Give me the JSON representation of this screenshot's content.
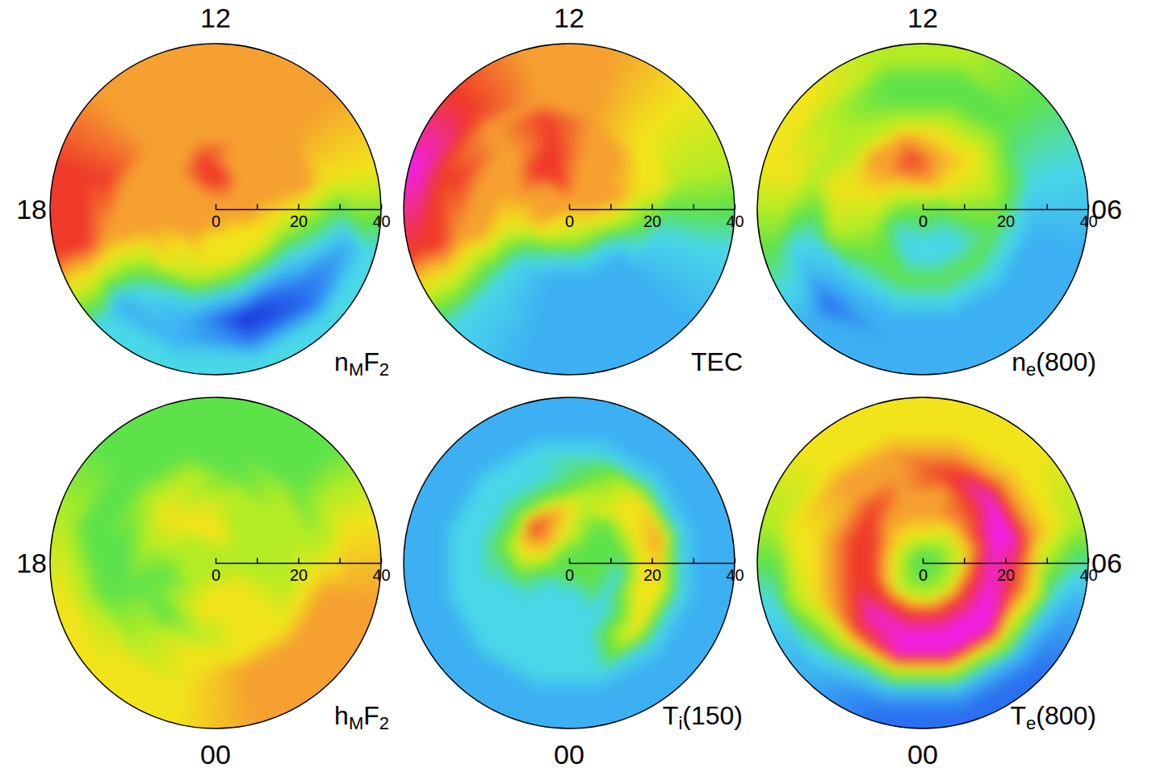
{
  "chart_data": {
    "type": "polar_heatmap",
    "hour_labels": {
      "top": "12",
      "left": "18",
      "right": "06",
      "bottom": "00"
    },
    "mlt": [
      1,
      3,
      5,
      7,
      9,
      11,
      13,
      15,
      17,
      19,
      21,
      23
    ],
    "colat": [
      2.5,
      7.5,
      12.5,
      17.5,
      22.5,
      27.5,
      32.5,
      37.5
    ],
    "rlim": [
      0,
      40
    ],
    "rticks": [
      0,
      10,
      20,
      30,
      40
    ],
    "rtick_labels": [
      0,
      20,
      40
    ],
    "color_scale": {
      "domain": [
        0,
        9
      ],
      "colors": [
        "#1832d8",
        "#2a70f0",
        "#3cb0f2",
        "#48d8e8",
        "#5ee24a",
        "#b4ec24",
        "#f2e41a",
        "#f5a030",
        "#f03a2a",
        "#f020e0"
      ]
    },
    "panels": [
      {
        "label": [
          {
            "text": "n"
          },
          {
            "text": "M",
            "sub": true
          },
          {
            "text": "F"
          },
          {
            "text": "2",
            "sub": true
          }
        ],
        "cells": [
          [
            7,
            7,
            7,
            7,
            7,
            7,
            7,
            7,
            7,
            7,
            7,
            7
          ],
          [
            6,
            6,
            7,
            7,
            7,
            8,
            8,
            7,
            7,
            7,
            7,
            6
          ],
          [
            6,
            6,
            6,
            7,
            7,
            7,
            8,
            7,
            7,
            7,
            6,
            6
          ],
          [
            4,
            4,
            5,
            7,
            7,
            7,
            7,
            7,
            7,
            7,
            6,
            5
          ],
          [
            2,
            2,
            4,
            7,
            7,
            7,
            7,
            7,
            7,
            7,
            4,
            3
          ],
          [
            0,
            1,
            3,
            6,
            7,
            7,
            7,
            7,
            8,
            7,
            3,
            2
          ],
          [
            1,
            1,
            2,
            6,
            7,
            7,
            7,
            7,
            8,
            8,
            2,
            2
          ],
          [
            3,
            3,
            3,
            6,
            7,
            7,
            7,
            7,
            8,
            8,
            3,
            3
          ]
        ]
      },
      {
        "label": [
          {
            "text": "TEC"
          }
        ],
        "cells": [
          [
            6,
            6,
            7,
            7,
            7,
            7,
            7,
            7,
            7,
            7,
            6,
            6
          ],
          [
            5,
            5,
            6,
            7,
            7,
            7,
            8,
            7,
            7,
            7,
            6,
            5
          ],
          [
            3,
            3,
            5,
            7,
            7,
            7,
            8,
            8,
            7,
            6,
            4,
            3
          ],
          [
            2,
            2,
            4,
            6,
            7,
            7,
            8,
            7,
            7,
            6,
            3,
            2
          ],
          [
            2,
            2,
            3,
            6,
            6,
            7,
            8,
            7,
            7,
            7,
            3,
            2
          ],
          [
            2,
            2,
            3,
            5,
            6,
            7,
            7,
            7,
            8,
            7,
            3,
            2
          ],
          [
            2,
            2,
            3,
            5,
            6,
            7,
            7,
            8,
            8,
            8,
            3,
            2
          ],
          [
            2,
            2,
            3,
            5,
            6,
            7,
            7,
            8,
            9,
            8,
            3,
            2
          ]
        ]
      },
      {
        "label": [
          {
            "text": "n"
          },
          {
            "text": "e",
            "sub": true
          },
          {
            "text": "(800)"
          }
        ],
        "cells": [
          [
            4,
            4,
            4,
            4,
            5,
            5,
            5,
            5,
            4,
            4,
            4,
            4
          ],
          [
            3,
            3,
            4,
            5,
            6,
            7,
            7,
            6,
            5,
            4,
            3,
            3
          ],
          [
            3,
            3,
            4,
            5,
            6,
            7,
            8,
            7,
            6,
            5,
            4,
            3
          ],
          [
            4,
            4,
            4,
            5,
            6,
            6,
            7,
            7,
            6,
            5,
            4,
            4
          ],
          [
            3,
            3,
            3,
            4,
            5,
            5,
            5,
            5,
            6,
            5,
            3,
            3
          ],
          [
            2,
            2,
            2,
            3,
            4,
            4,
            4,
            5,
            5,
            3,
            2,
            2
          ],
          [
            2,
            2,
            2,
            3,
            4,
            4,
            4,
            5,
            6,
            3,
            1,
            2
          ],
          [
            2,
            2,
            2,
            3,
            4,
            5,
            5,
            6,
            6,
            4,
            2,
            2
          ]
        ]
      },
      {
        "label": [
          {
            "text": "h"
          },
          {
            "text": "M",
            "sub": true
          },
          {
            "text": "F"
          },
          {
            "text": "2",
            "sub": true
          }
        ],
        "cells": [
          [
            5,
            5,
            5,
            5,
            5,
            5,
            5,
            5,
            5,
            5,
            5,
            5
          ],
          [
            6,
            6,
            5,
            5,
            5,
            6,
            6,
            5,
            5,
            5,
            5,
            6
          ],
          [
            6,
            6,
            5,
            5,
            5,
            5,
            6,
            6,
            5,
            4,
            5,
            6
          ],
          [
            6,
            6,
            5,
            5,
            5,
            5,
            5,
            6,
            5,
            4,
            4,
            5
          ],
          [
            6,
            6,
            6,
            5,
            5,
            4,
            5,
            5,
            4,
            4,
            5,
            6
          ],
          [
            7,
            7,
            7,
            5,
            4,
            4,
            4,
            4,
            4,
            4,
            5,
            6
          ],
          [
            7,
            7,
            7,
            6,
            4,
            4,
            4,
            4,
            4,
            5,
            6,
            6
          ],
          [
            7,
            7,
            7,
            6,
            4,
            4,
            4,
            4,
            5,
            6,
            6,
            6
          ]
        ]
      },
      {
        "label": [
          {
            "text": "T"
          },
          {
            "text": "i",
            "sub": true
          },
          {
            "text": "(150)"
          }
        ],
        "cells": [
          [
            4,
            4,
            4,
            4,
            4,
            4,
            4,
            4,
            4,
            4,
            4,
            4
          ],
          [
            3,
            4,
            4,
            4,
            4,
            5,
            6,
            7,
            6,
            4,
            3,
            3
          ],
          [
            3,
            3,
            3,
            4,
            4,
            5,
            7,
            8,
            6,
            4,
            3,
            3
          ],
          [
            3,
            4,
            6,
            6,
            6,
            5,
            4,
            4,
            4,
            3,
            3,
            3
          ],
          [
            3,
            6,
            6,
            7,
            6,
            4,
            3,
            3,
            3,
            3,
            3,
            3
          ],
          [
            3,
            3,
            3,
            3,
            3,
            3,
            3,
            3,
            3,
            3,
            3,
            3
          ],
          [
            2,
            2,
            2,
            2,
            2,
            2,
            2,
            2,
            2,
            2,
            2,
            2
          ],
          [
            2,
            2,
            2,
            2,
            2,
            2,
            2,
            2,
            2,
            2,
            2,
            2
          ]
        ]
      },
      {
        "label": [
          {
            "text": "T"
          },
          {
            "text": "e",
            "sub": true
          },
          {
            "text": "(800)"
          }
        ],
        "cells": [
          [
            4,
            4,
            4,
            4,
            4,
            4,
            4,
            4,
            4,
            4,
            4,
            4
          ],
          [
            5,
            5,
            5,
            5,
            5,
            6,
            6,
            6,
            6,
            6,
            5,
            5
          ],
          [
            8,
            8,
            8,
            7,
            7,
            7,
            7,
            7,
            8,
            8,
            8,
            8
          ],
          [
            9,
            9,
            9,
            9,
            8,
            7,
            7,
            8,
            8,
            8,
            9,
            9
          ],
          [
            9,
            9,
            8,
            9,
            9,
            8,
            7,
            7,
            7,
            7,
            8,
            9
          ],
          [
            5,
            5,
            6,
            7,
            7,
            7,
            7,
            7,
            6,
            6,
            5,
            5
          ],
          [
            2,
            2,
            3,
            6,
            6,
            6,
            6,
            6,
            6,
            5,
            3,
            2
          ],
          [
            1,
            1,
            2,
            5,
            6,
            6,
            6,
            6,
            5,
            3,
            2,
            1
          ]
        ]
      }
    ]
  }
}
